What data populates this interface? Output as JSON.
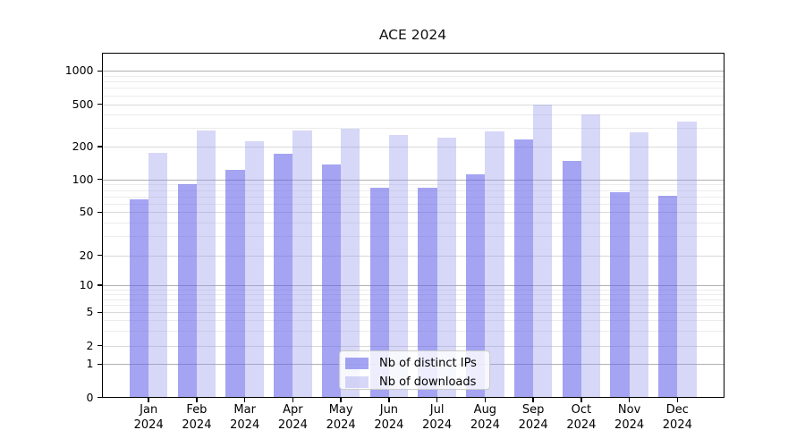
{
  "title": "ACE 2024",
  "legend": {
    "items": [
      {
        "label": "Nb of distinct IPs"
      },
      {
        "label": "Nb of downloads"
      }
    ]
  },
  "chart_data": {
    "type": "bar",
    "title": "ACE 2024",
    "categories": [
      "Jan 2024",
      "Feb 2024",
      "Mar 2024",
      "Apr 2024",
      "May 2024",
      "Jun 2024",
      "Jul 2024",
      "Aug 2024",
      "Sep 2024",
      "Oct 2024",
      "Nov 2024",
      "Dec 2024"
    ],
    "series": [
      {
        "name": "Nb of distinct IPs",
        "color": "rgba(95,95,233,0.57)",
        "color_on_white": "#a4a4f2",
        "values": [
          66,
          90,
          123,
          172,
          137,
          84,
          84,
          111,
          233,
          147,
          76,
          71
        ]
      },
      {
        "name": "Nb of downloads",
        "color": "rgba(150,150,235,0.38)",
        "color_on_white": "#d7d7f7",
        "values": [
          177,
          286,
          224,
          283,
          294,
          260,
          242,
          280,
          500,
          400,
          271,
          343
        ]
      }
    ],
    "yscale": "symlog",
    "y_ticks": [
      1000,
      500,
      200,
      100,
      50,
      20,
      10,
      5,
      2,
      1,
      0
    ],
    "ylim": [
      0,
      1500
    ],
    "xlabel": "",
    "ylabel": "",
    "grid": true,
    "legend_position": "lower center"
  }
}
